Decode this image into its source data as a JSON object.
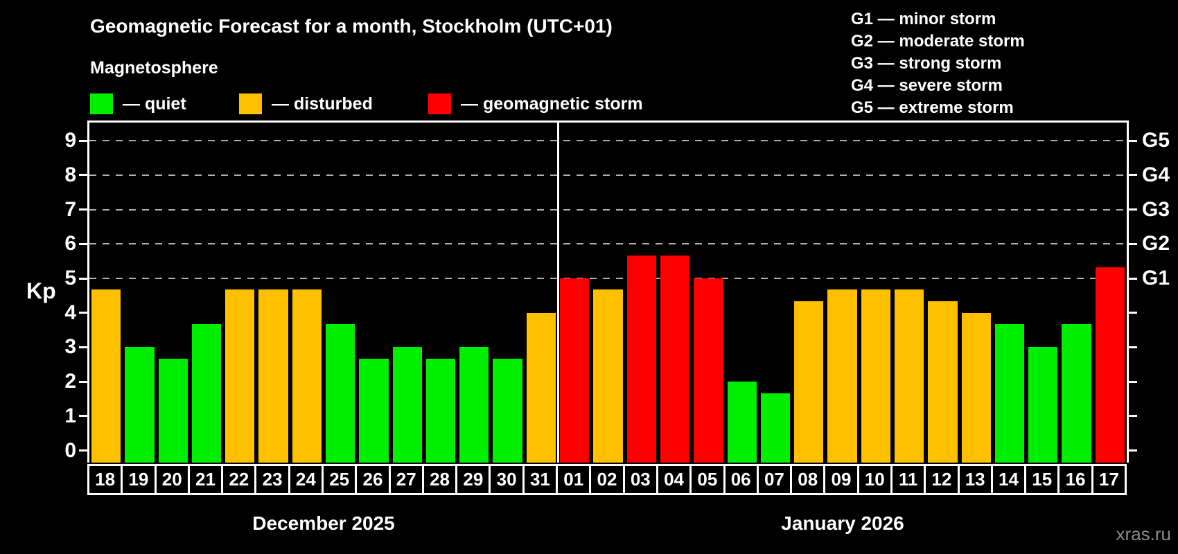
{
  "title": "Geomagnetic Forecast for a month, Stockholm (UTC+01)",
  "subtitle": "Magnetosphere",
  "status_legend": [
    {
      "key": "quiet",
      "label": "— quiet",
      "color": "#00ee00"
    },
    {
      "key": "disturbed",
      "label": "— disturbed",
      "color": "#ffc000"
    },
    {
      "key": "storm",
      "label": "— geomagnetic storm",
      "color": "#ff0000"
    }
  ],
  "g_scale_legend": [
    "G1 — minor storm",
    "G2 — moderate storm",
    "G3 — strong storm",
    "G4 — severe storm",
    "G5 — extreme storm"
  ],
  "watermark": "xras.ru",
  "chart_data": {
    "type": "bar",
    "title": "Geomagnetic Forecast for a month, Stockholm (UTC+01)",
    "subtitle": "Magnetosphere",
    "ylabel": "Kp",
    "ylim": [
      0,
      9
    ],
    "y_ticks": [
      0,
      1,
      2,
      3,
      4,
      5,
      6,
      7,
      8,
      9
    ],
    "gridlines_at_kp": [
      5,
      6,
      7,
      8,
      9
    ],
    "grid": "dashed horizontal lines at G-storm levels only",
    "legend_position": "top-left",
    "right_axis_labels": [
      {
        "label": "G1",
        "kp": 5
      },
      {
        "label": "G2",
        "kp": 6
      },
      {
        "label": "G3",
        "kp": 7
      },
      {
        "label": "G4",
        "kp": 8
      },
      {
        "label": "G5",
        "kp": 9
      }
    ],
    "colors": {
      "quiet": "#00ee00",
      "disturbed": "#ffc000",
      "storm": "#ff0000"
    },
    "months": [
      {
        "label": "December 2025",
        "days": [
          "18",
          "19",
          "20",
          "21",
          "22",
          "23",
          "24",
          "25",
          "26",
          "27",
          "28",
          "29",
          "30",
          "31"
        ],
        "values": [
          4.67,
          3,
          2.67,
          3.67,
          4.67,
          4.67,
          4.67,
          3.67,
          2.67,
          3,
          2.67,
          3,
          2.67,
          4
        ],
        "levels": [
          "disturbed",
          "quiet",
          "quiet",
          "quiet",
          "disturbed",
          "disturbed",
          "disturbed",
          "quiet",
          "quiet",
          "quiet",
          "quiet",
          "quiet",
          "quiet",
          "disturbed"
        ]
      },
      {
        "label": "January 2026",
        "days": [
          "01",
          "02",
          "03",
          "04",
          "05",
          "06",
          "07",
          "08",
          "09",
          "10",
          "11",
          "12",
          "13",
          "14",
          "15",
          "16",
          "17"
        ],
        "values": [
          5,
          4.67,
          5.67,
          5.67,
          5,
          2,
          1.67,
          4.33,
          4.67,
          4.67,
          4.67,
          4.33,
          4,
          3.67,
          3,
          3.67,
          5.33
        ],
        "levels": [
          "storm",
          "disturbed",
          "storm",
          "storm",
          "storm",
          "quiet",
          "quiet",
          "disturbed",
          "disturbed",
          "disturbed",
          "disturbed",
          "disturbed",
          "disturbed",
          "quiet",
          "quiet",
          "quiet",
          "storm"
        ]
      }
    ]
  }
}
